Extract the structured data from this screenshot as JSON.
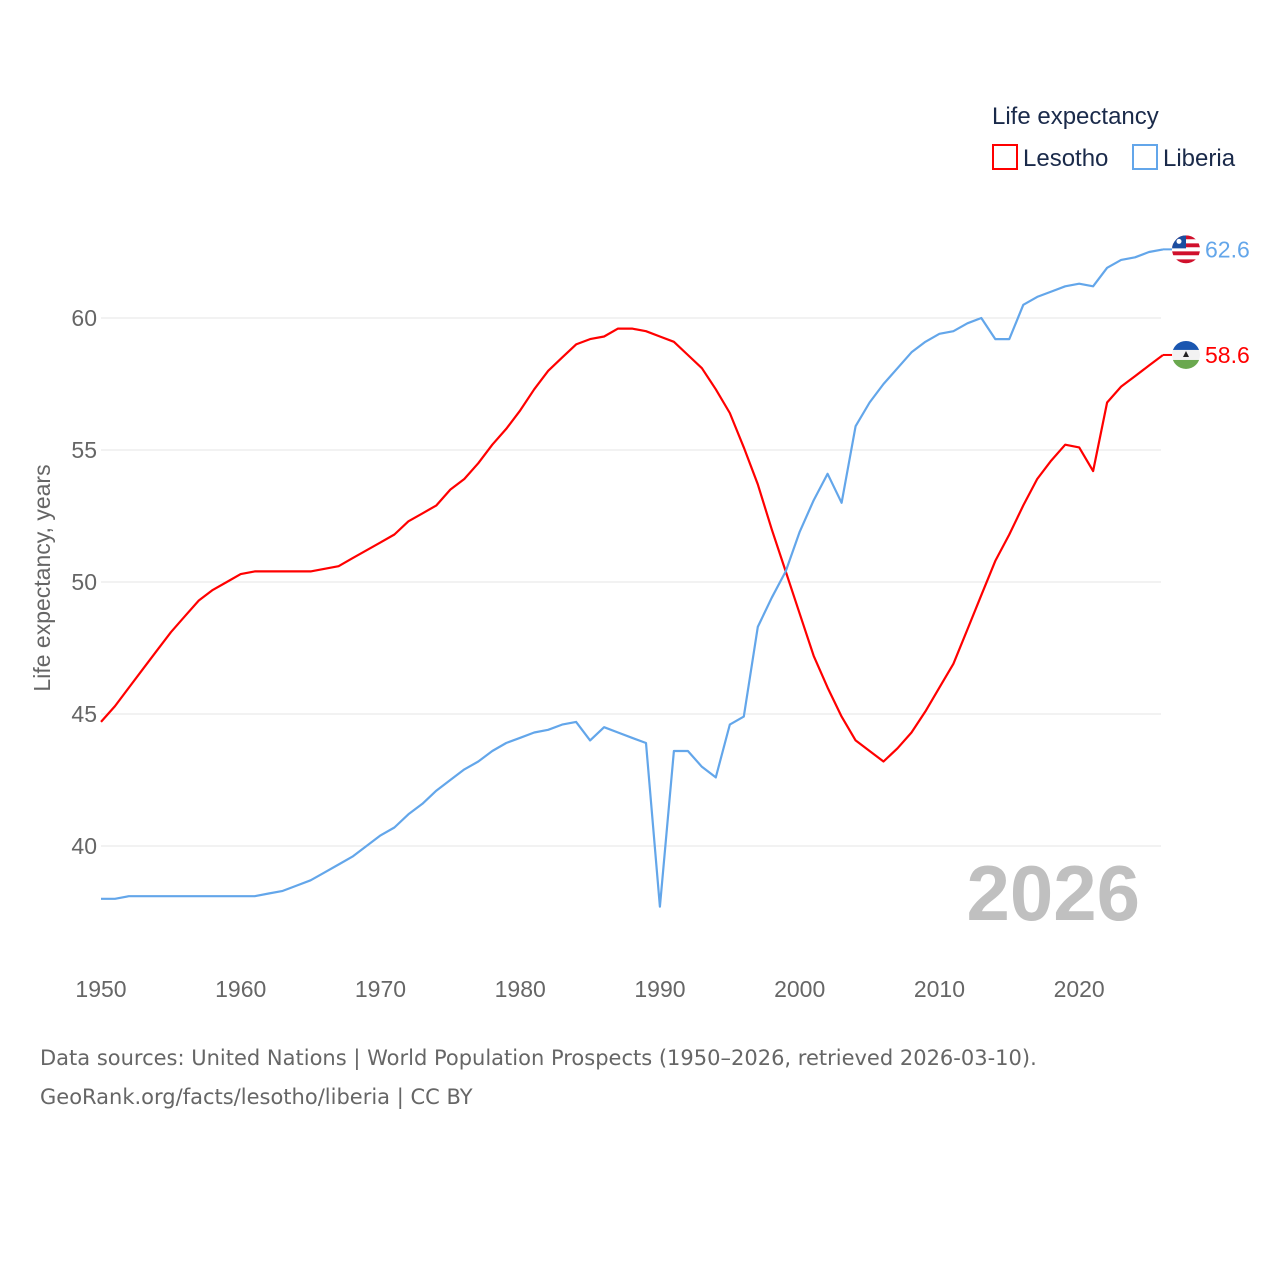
{
  "chart_data": {
    "type": "line",
    "ylabel": "Life expectancy, years",
    "xlabel": "",
    "xlim": [
      1950,
      2026
    ],
    "ylim": [
      36,
      64
    ],
    "x_ticks": [
      1950,
      1960,
      1970,
      1980,
      1990,
      2000,
      2010,
      2020
    ],
    "y_ticks": [
      40,
      45,
      50,
      55,
      60
    ],
    "grid": true,
    "legend_title": "Life expectancy",
    "legend_position": "top-right",
    "year_watermark": "2026",
    "x": [
      1950,
      1951,
      1952,
      1953,
      1954,
      1955,
      1956,
      1957,
      1958,
      1959,
      1960,
      1961,
      1962,
      1963,
      1964,
      1965,
      1966,
      1967,
      1968,
      1969,
      1970,
      1971,
      1972,
      1973,
      1974,
      1975,
      1976,
      1977,
      1978,
      1979,
      1980,
      1981,
      1982,
      1983,
      1984,
      1985,
      1986,
      1987,
      1988,
      1989,
      1990,
      1991,
      1992,
      1993,
      1994,
      1995,
      1996,
      1997,
      1998,
      1999,
      2000,
      2001,
      2002,
      2003,
      2004,
      2005,
      2006,
      2007,
      2008,
      2009,
      2010,
      2011,
      2012,
      2013,
      2014,
      2015,
      2016,
      2017,
      2018,
      2019,
      2020,
      2021,
      2022,
      2023,
      2024,
      2025,
      2026
    ],
    "series": [
      {
        "name": "Lesotho",
        "color": "#ff0000",
        "end_label": "58.6",
        "flag": "lesotho-flag",
        "values": [
          44.7,
          45.3,
          46.0,
          46.7,
          47.4,
          48.1,
          48.7,
          49.3,
          49.7,
          50.0,
          50.3,
          50.4,
          50.4,
          50.4,
          50.4,
          50.4,
          50.5,
          50.6,
          50.9,
          51.2,
          51.5,
          51.8,
          52.3,
          52.6,
          52.9,
          53.5,
          53.9,
          54.5,
          55.2,
          55.8,
          56.5,
          57.3,
          58.0,
          58.5,
          59.0,
          59.2,
          59.3,
          59.6,
          59.6,
          59.5,
          59.3,
          59.1,
          58.6,
          58.1,
          57.3,
          56.4,
          55.1,
          53.7,
          52.0,
          50.4,
          48.8,
          47.2,
          46.0,
          44.9,
          44.0,
          43.6,
          43.2,
          43.7,
          44.3,
          45.1,
          46.0,
          46.9,
          48.2,
          49.5,
          50.8,
          51.8,
          52.9,
          53.9,
          54.6,
          55.2,
          55.1,
          54.2,
          56.8,
          57.4,
          57.8,
          58.2,
          58.6
        ]
      },
      {
        "name": "Liberia",
        "color": "#63a6ea",
        "end_label": "62.6",
        "flag": "liberia-flag",
        "values": [
          38.0,
          38.0,
          38.1,
          38.1,
          38.1,
          38.1,
          38.1,
          38.1,
          38.1,
          38.1,
          38.1,
          38.1,
          38.2,
          38.3,
          38.5,
          38.7,
          39.0,
          39.3,
          39.6,
          40.0,
          40.4,
          40.7,
          41.2,
          41.6,
          42.1,
          42.5,
          42.9,
          43.2,
          43.6,
          43.9,
          44.1,
          44.3,
          44.4,
          44.6,
          44.7,
          44.0,
          44.5,
          44.3,
          44.1,
          43.9,
          37.7,
          43.6,
          43.6,
          43.0,
          42.6,
          44.6,
          44.9,
          48.3,
          49.4,
          50.4,
          51.9,
          53.1,
          54.1,
          53.0,
          55.9,
          56.8,
          57.5,
          58.1,
          58.7,
          59.1,
          59.4,
          59.5,
          59.8,
          60.0,
          59.2,
          59.2,
          60.5,
          60.8,
          61.0,
          61.2,
          61.3,
          61.2,
          61.9,
          62.2,
          62.3,
          62.5,
          62.6
        ]
      }
    ]
  },
  "footer": {
    "line1": "Data sources: United Nations | World Population Prospects (1950–2026, retrieved 2026-03-10).",
    "line2": "GeoRank.org/facts/lesotho/liberia | CC BY"
  }
}
